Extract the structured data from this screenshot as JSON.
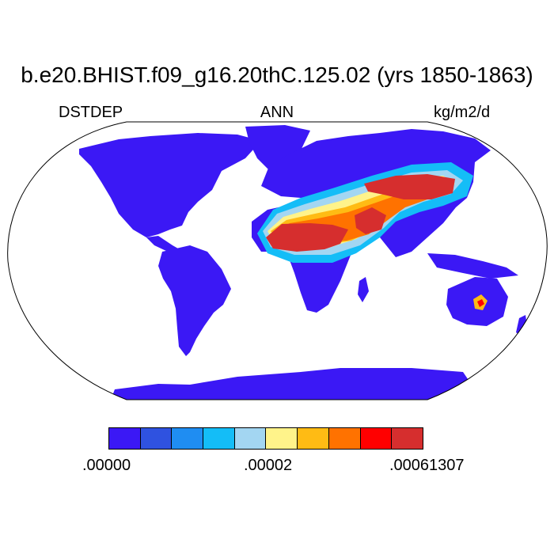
{
  "title": "b.e20.BHIST.f09_g16.20thC.125.02 (yrs 1850-1863)",
  "labels": {
    "left": "DSTDEP",
    "center": "ANN",
    "right": "kg/m2/d"
  },
  "colorbar": {
    "colors": [
      "#3b18f5",
      "#2f52e0",
      "#1f8df2",
      "#14bdf7",
      "#a3d6f2",
      "#fff38a",
      "#ffbb14",
      "#ff7200",
      "#ff0000",
      "#d62e2e"
    ],
    "tick_labels": [
      ".00000",
      ".00002",
      ".00061307"
    ]
  },
  "colors": {
    "ocean": "#ffffff",
    "land_low": "#3b18f5",
    "coast": "#000000"
  }
}
